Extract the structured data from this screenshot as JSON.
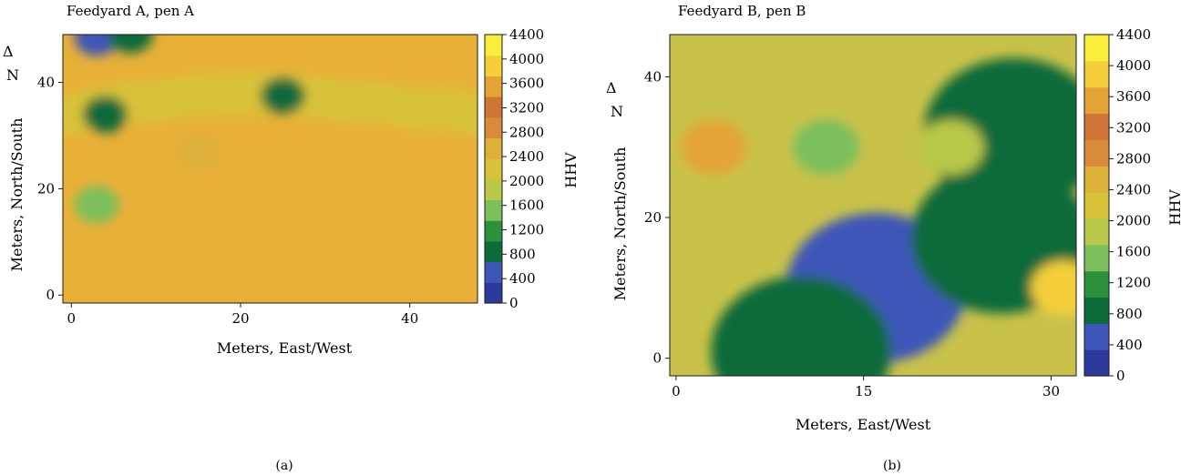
{
  "colors": {
    "colormap": [
      "#2d3a9c",
      "#3d56b8",
      "#0d6b3a",
      "#2e8f3c",
      "#7cbf5c",
      "#b8c84a",
      "#d8c23a",
      "#ddb03a",
      "#d98a3a",
      "#d07438",
      "#e4a435",
      "#f4cf3a",
      "#fbee3a"
    ],
    "axis": "#1a1a1a"
  },
  "chart_data": [
    {
      "type": "heatmap",
      "title": "Feedyard A, pen A",
      "xlabel": "Meters, East/West",
      "ylabel": "Meters, North/South",
      "north_arrow": "Δ",
      "north_letter": "N",
      "xlim": [
        -1,
        48
      ],
      "ylim": [
        -1.5,
        49
      ],
      "xticks": [
        0,
        20,
        40
      ],
      "yticks": [
        0,
        20,
        40
      ],
      "colorbar": {
        "label": "HHV",
        "range": [
          0,
          4400
        ],
        "ticks": [
          0,
          400,
          800,
          1200,
          1600,
          2000,
          2400,
          2800,
          3200,
          3600,
          4000,
          4400
        ]
      },
      "panel_label": "(a)",
      "features": [
        {
          "type": "ridge",
          "x": [
            0,
            6,
            12,
            18,
            24,
            30,
            36,
            42,
            48
          ],
          "y": [
            34,
            36,
            37,
            38,
            38,
            37,
            36,
            35,
            34
          ],
          "value": 2300
        },
        {
          "type": "spot",
          "x": 25,
          "y": 37.5,
          "value": 600
        },
        {
          "type": "spot",
          "x": 4,
          "y": 34,
          "value": 800
        },
        {
          "type": "spot",
          "x": 3,
          "y": 48.5,
          "value": 300
        },
        {
          "type": "spot",
          "x": 7,
          "y": 49,
          "value": 700
        },
        {
          "type": "spot",
          "x": 3,
          "y": 17,
          "value": 1500
        },
        {
          "type": "spot",
          "x": 15,
          "y": 27,
          "value": 2400
        },
        {
          "type": "spot",
          "x": 44,
          "y": 36,
          "value": 2300
        }
      ]
    },
    {
      "type": "heatmap",
      "title": "Feedyard B, pen B",
      "xlabel": "Meters, East/West",
      "ylabel": "Meters, North/South",
      "north_arrow": "Δ",
      "north_letter": "N",
      "xlim": [
        -0.5,
        32
      ],
      "ylim": [
        -2.5,
        46
      ],
      "xticks": [
        0,
        15,
        30
      ],
      "yticks": [
        0,
        20,
        40
      ],
      "colorbar": {
        "label": "HHV",
        "range": [
          0,
          4400
        ],
        "ticks": [
          0,
          400,
          800,
          1200,
          1600,
          2000,
          2400,
          2800,
          3200,
          3600,
          4000,
          4400
        ]
      },
      "panel_label": "(b)",
      "features": [
        {
          "type": "blob",
          "x": 16,
          "y": 10,
          "value": 250
        },
        {
          "type": "blob",
          "x": 10,
          "y": 1,
          "value": 700
        },
        {
          "type": "blob",
          "x": 27,
          "y": 32,
          "value": 600
        },
        {
          "type": "blob",
          "x": 26,
          "y": 17,
          "value": 700
        },
        {
          "type": "spot",
          "x": 12,
          "y": 30,
          "value": 1300
        },
        {
          "type": "spot",
          "x": 22,
          "y": 30,
          "value": 1700
        },
        {
          "type": "spot",
          "x": 3,
          "y": 30,
          "value": 3600
        },
        {
          "type": "spot",
          "x": 31,
          "y": 10,
          "value": 3900
        }
      ]
    }
  ]
}
